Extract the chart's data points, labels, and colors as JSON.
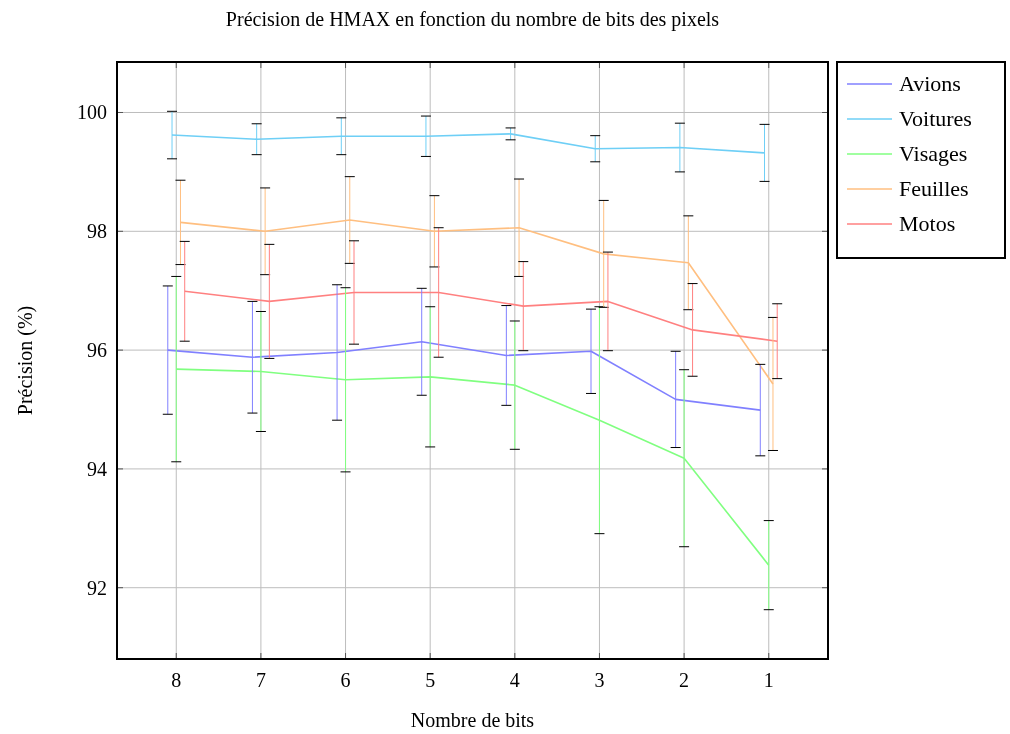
{
  "chart_data": {
    "type": "line",
    "title": "Précision de HMAX en fonction du nombre de bits des pixels",
    "xlabel": "Nombre de bits",
    "ylabel": "Précision (%)",
    "xlim": [
      8.7,
      0.3
    ],
    "xticks": [
      8,
      7,
      6,
      5,
      4,
      3,
      2,
      1
    ],
    "ylim": [
      90.8,
      100.85
    ],
    "yticks": [
      92,
      94,
      96,
      98,
      100
    ],
    "grid": true,
    "legend": "top right",
    "marker": "none",
    "line_style": "solid",
    "series": [
      {
        "name": "Avions",
        "color": "#8080ff",
        "x": [
          8.1,
          7.1,
          6.1,
          5.1,
          4.1,
          3.1,
          2.1,
          1.1
        ],
        "values": [
          96.0,
          95.88,
          95.96,
          96.14,
          95.91,
          95.98,
          95.17,
          94.99
        ],
        "errors": [
          1.08,
          0.94,
          1.14,
          0.9,
          0.84,
          0.71,
          0.81,
          0.77
        ]
      },
      {
        "name": "Voitures",
        "color": "#6ecff6",
        "x": [
          8.05,
          7.05,
          6.05,
          5.05,
          4.05,
          3.05,
          2.05,
          1.05
        ],
        "values": [
          99.62,
          99.55,
          99.6,
          99.6,
          99.64,
          99.39,
          99.41,
          99.32
        ],
        "errors": [
          0.4,
          0.26,
          0.31,
          0.34,
          0.1,
          0.22,
          0.41,
          0.48
        ]
      },
      {
        "name": "Visages",
        "color": "#80ff80",
        "x": [
          8,
          7,
          6,
          5,
          4,
          3,
          2,
          1
        ],
        "values": [
          95.68,
          95.64,
          95.5,
          95.55,
          95.41,
          94.82,
          94.18,
          92.38
        ],
        "errors": [
          1.56,
          1.01,
          1.55,
          1.18,
          1.08,
          1.91,
          1.49,
          0.75
        ]
      },
      {
        "name": "Feuilles",
        "color": "#ffbf80",
        "x": [
          7.95,
          6.95,
          5.95,
          4.95,
          3.95,
          2.95,
          1.95,
          0.95
        ],
        "values": [
          98.15,
          98.0,
          98.19,
          98.0,
          98.06,
          97.62,
          97.47,
          95.43
        ],
        "errors": [
          0.71,
          0.73,
          0.73,
          0.6,
          0.82,
          0.9,
          0.79,
          1.12
        ]
      },
      {
        "name": "Motos",
        "color": "#ff8080",
        "x": [
          7.9,
          6.9,
          5.9,
          4.9,
          3.9,
          2.9,
          1.9,
          0.9
        ],
        "values": [
          96.99,
          96.82,
          96.97,
          96.97,
          96.74,
          96.82,
          96.34,
          96.15
        ],
        "errors": [
          0.84,
          0.96,
          0.87,
          1.09,
          0.75,
          0.83,
          0.78,
          0.63
        ]
      }
    ]
  }
}
